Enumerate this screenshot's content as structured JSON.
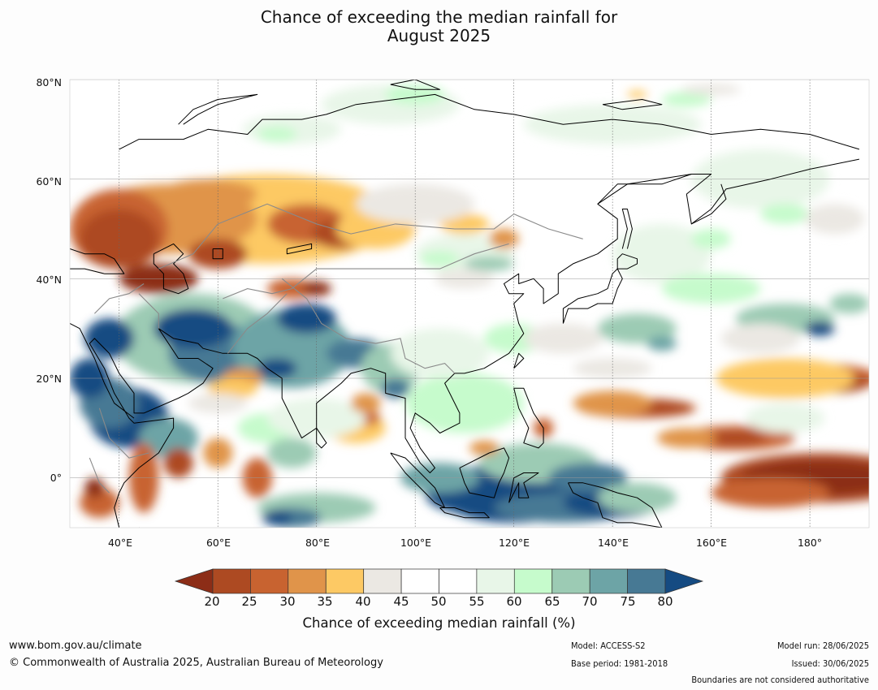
{
  "title": {
    "line1": "Chance of exceeding the median rainfall for",
    "line2": "August 2025"
  },
  "map": {
    "lat_labels": [
      "80°N",
      "60°N",
      "40°N",
      "20°N",
      "0°"
    ],
    "lon_labels": [
      "40°E",
      "60°E",
      "80°E",
      "100°E",
      "120°E",
      "140°E",
      "160°E",
      "180°"
    ],
    "colors": {
      "c_20": "#8c2d17",
      "c_25": "#ad4a22",
      "c_30": "#c86330",
      "c_35": "#e0944a",
      "c_40": "#fdc964",
      "c_45": "#ebe8e3",
      "c_55": "#ffffff",
      "c_60": "#e8f6e8",
      "c_65": "#c6fbcc",
      "c_70": "#9ccbb4",
      "c_75": "#6da4a6",
      "c_80": "#477994",
      "c_80p": "#154b82"
    }
  },
  "legend": {
    "ticks": [
      "20",
      "25",
      "30",
      "35",
      "40",
      "45",
      "50",
      "55",
      "60",
      "65",
      "70",
      "75",
      "80"
    ],
    "label": "Chance of exceeding median rainfall (%)"
  },
  "footer": {
    "url": "www.bom.gov.au/climate",
    "copyright": "© Commonwealth of Australia 2025, Australian Bureau of Meteorology",
    "model": "Model: ACCESS-S2",
    "base_period": "Base period: 1981-2018",
    "model_run": "Model run: 28/06/2025",
    "issued": "Issued: 30/06/2025",
    "disclaimer": "Boundaries are not considered authoritative"
  }
}
